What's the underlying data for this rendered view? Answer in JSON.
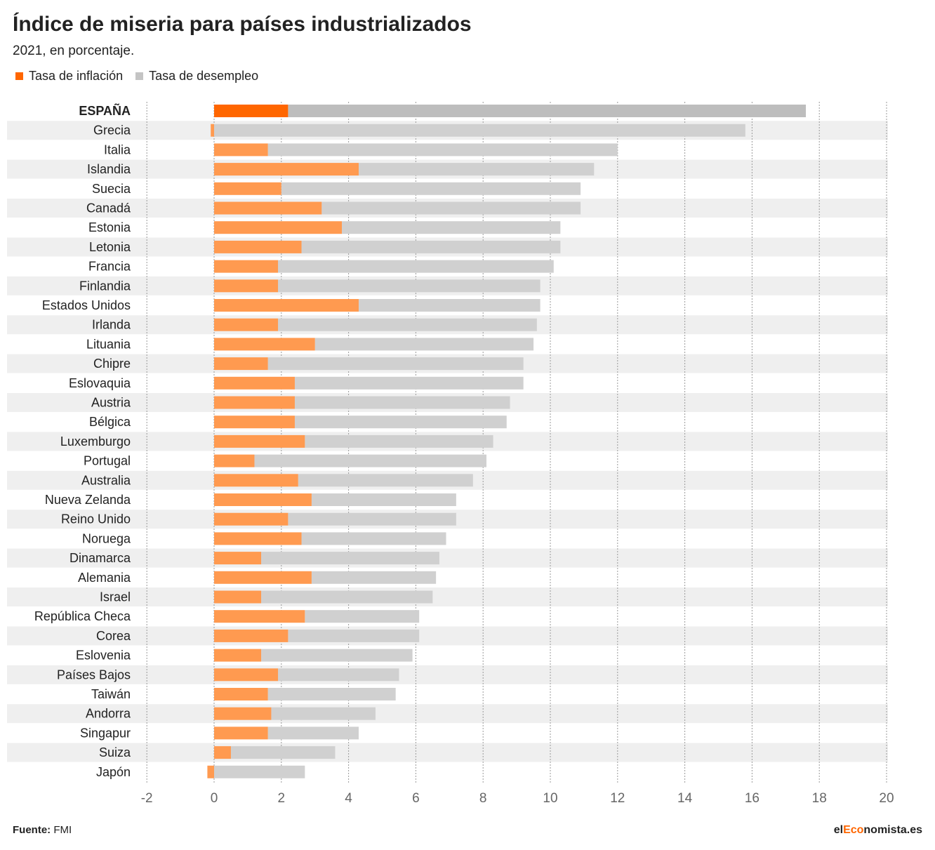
{
  "chart_data": {
    "type": "bar",
    "orientation": "horizontal",
    "stacked": true,
    "title": "Índice de miseria para países industrializados",
    "subtitle": "2021, en porcentaje.",
    "xlim": [
      -2,
      20
    ],
    "xticks": [
      -2,
      0,
      2,
      4,
      6,
      8,
      10,
      12,
      14,
      16,
      18,
      20
    ],
    "grid": true,
    "legend_position": "top-left",
    "highlight": "ESPAÑA",
    "categories": [
      "ESPAÑA",
      "Grecia",
      "Italia",
      "Islandia",
      "Suecia",
      "Canadá",
      "Estonia",
      "Letonia",
      "Francia",
      "Finlandia",
      "Estados Unidos",
      "Irlanda",
      "Lituania",
      "Chipre",
      "Eslovaquia",
      "Austria",
      "Bélgica",
      "Luxemburgo",
      "Portugal",
      "Australia",
      "Nueva Zelanda",
      "Reino Unido",
      "Noruega",
      "Dinamarca",
      "Alemania",
      "Israel",
      "República Checa",
      "Corea",
      "Eslovenia",
      "Países Bajos",
      "Taiwán",
      "Andorra",
      "Singapur",
      "Suiza",
      "Japón"
    ],
    "series": [
      {
        "name": "Tasa de inflación",
        "color": "#ff9a50",
        "highlight_color": "#ff6600",
        "values": [
          2.2,
          -0.1,
          1.6,
          4.3,
          2.0,
          3.2,
          3.8,
          2.6,
          1.9,
          1.9,
          4.3,
          1.9,
          3.0,
          1.6,
          2.4,
          2.4,
          2.4,
          2.7,
          1.2,
          2.5,
          2.9,
          2.2,
          2.6,
          1.4,
          2.9,
          1.4,
          2.7,
          2.2,
          1.4,
          1.9,
          1.6,
          1.7,
          1.6,
          0.5,
          -0.2
        ]
      },
      {
        "name": "Tasa de desempleo",
        "color": "#d0d0d0",
        "highlight_color": "#bdbdbd",
        "values": [
          15.4,
          15.8,
          10.4,
          7.0,
          8.9,
          7.7,
          6.5,
          7.7,
          8.2,
          7.8,
          5.4,
          7.7,
          6.5,
          7.6,
          6.8,
          6.4,
          6.3,
          5.6,
          6.9,
          5.2,
          4.3,
          5.0,
          4.3,
          5.3,
          3.7,
          5.1,
          3.4,
          3.9,
          4.5,
          3.6,
          3.8,
          3.1,
          2.7,
          3.1,
          2.7
        ]
      }
    ]
  },
  "footer": {
    "source_label": "Fuente:",
    "source": "FMI",
    "logo_el": "el",
    "logo_eco": "Eco",
    "logo_rest": "nomista.es"
  }
}
